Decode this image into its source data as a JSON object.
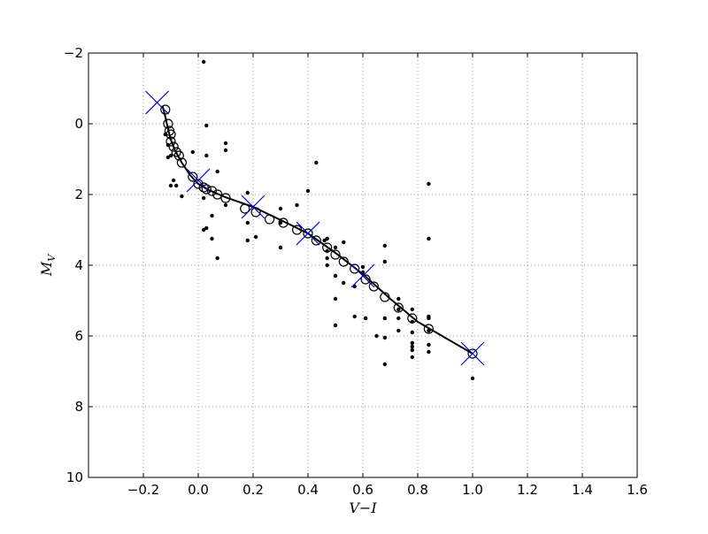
{
  "chart_data": {
    "type": "scatter",
    "title": "",
    "xlabel": "V−I",
    "ylabel": "M",
    "ylabel_subscript": "V",
    "xlim": [
      -0.4,
      1.6
    ],
    "ylim": [
      10,
      -2
    ],
    "y_inverted": true,
    "grid": true,
    "grid_style": "dotted",
    "x_ticks": [
      -0.2,
      0.0,
      0.2,
      0.4,
      0.6,
      0.8,
      1.0,
      1.2,
      1.4,
      1.6
    ],
    "x_tick_labels": [
      "−0.2",
      "0.0",
      "0.2",
      "0.4",
      "0.6",
      "0.8",
      "1.0",
      "1.2",
      "1.4",
      "1.6"
    ],
    "y_ticks": [
      -2,
      0,
      2,
      4,
      6,
      8,
      10
    ],
    "y_tick_labels": [
      "−2",
      "0",
      "2",
      "4",
      "6",
      "8",
      "10"
    ],
    "colors": {
      "points": "#000000",
      "curve": "#000000",
      "knots": "#0000cc",
      "grid": "#808080"
    },
    "series": [
      {
        "kind": "dots",
        "points": [
          [
            0.02,
            -1.75
          ],
          [
            0.1,
            0.55
          ],
          [
            0.03,
            0.05
          ],
          [
            -0.12,
            0.3
          ],
          [
            -0.11,
            0.6
          ],
          [
            -0.1,
            0.9
          ],
          [
            -0.11,
            0.95
          ],
          [
            -0.09,
            1.6
          ],
          [
            -0.1,
            1.75
          ],
          [
            -0.08,
            1.75
          ],
          [
            -0.06,
            2.05
          ],
          [
            -0.02,
            0.8
          ],
          [
            0.03,
            0.9
          ],
          [
            0.1,
            0.75
          ],
          [
            0.07,
            1.35
          ],
          [
            0.02,
            2.1
          ],
          [
            0.05,
            2.6
          ],
          [
            0.03,
            2.95
          ],
          [
            0.02,
            3.0
          ],
          [
            0.05,
            3.25
          ],
          [
            0.07,
            3.8
          ],
          [
            0.1,
            2.3
          ],
          [
            0.18,
            1.95
          ],
          [
            0.18,
            2.8
          ],
          [
            0.18,
            3.3
          ],
          [
            0.21,
            3.2
          ],
          [
            0.3,
            2.4
          ],
          [
            0.3,
            2.8
          ],
          [
            0.3,
            3.5
          ],
          [
            0.36,
            2.3
          ],
          [
            0.4,
            1.9
          ],
          [
            0.43,
            1.1
          ],
          [
            0.46,
            3.3
          ],
          [
            0.47,
            3.25
          ],
          [
            0.47,
            3.6
          ],
          [
            0.47,
            3.8
          ],
          [
            0.47,
            4.0
          ],
          [
            0.5,
            3.5
          ],
          [
            0.5,
            4.3
          ],
          [
            0.5,
            4.95
          ],
          [
            0.5,
            5.7
          ],
          [
            0.53,
            3.35
          ],
          [
            0.53,
            4.5
          ],
          [
            0.57,
            4.6
          ],
          [
            0.57,
            5.45
          ],
          [
            0.6,
            4.05
          ],
          [
            0.6,
            4.2
          ],
          [
            0.61,
            5.5
          ],
          [
            0.65,
            6.0
          ],
          [
            0.68,
            3.45
          ],
          [
            0.68,
            3.9
          ],
          [
            0.68,
            5.5
          ],
          [
            0.68,
            6.05
          ],
          [
            0.68,
            6.8
          ],
          [
            0.73,
            4.95
          ],
          [
            0.73,
            5.25
          ],
          [
            0.73,
            5.5
          ],
          [
            0.73,
            5.85
          ],
          [
            0.78,
            5.25
          ],
          [
            0.78,
            5.6
          ],
          [
            0.78,
            5.9
          ],
          [
            0.78,
            6.2
          ],
          [
            0.78,
            6.3
          ],
          [
            0.78,
            6.4
          ],
          [
            0.78,
            6.6
          ],
          [
            0.84,
            1.7
          ],
          [
            0.84,
            3.25
          ],
          [
            0.84,
            5.45
          ],
          [
            0.84,
            5.5
          ],
          [
            0.84,
            5.85
          ],
          [
            0.84,
            6.25
          ],
          [
            0.84,
            6.45
          ],
          [
            1.0,
            7.2
          ]
        ]
      },
      {
        "kind": "open-circles",
        "points": [
          [
            -0.12,
            -0.4
          ],
          [
            -0.11,
            0.0
          ],
          [
            -0.105,
            0.2
          ],
          [
            -0.1,
            0.3
          ],
          [
            -0.1,
            0.5
          ],
          [
            -0.09,
            0.65
          ],
          [
            -0.08,
            0.8
          ],
          [
            -0.07,
            0.9
          ],
          [
            -0.06,
            1.1
          ],
          [
            -0.02,
            1.5
          ],
          [
            0.0,
            1.7
          ],
          [
            0.02,
            1.8
          ],
          [
            0.03,
            1.85
          ],
          [
            0.05,
            1.9
          ],
          [
            0.07,
            2.0
          ],
          [
            0.1,
            2.1
          ],
          [
            0.17,
            2.4
          ],
          [
            0.21,
            2.5
          ],
          [
            0.26,
            2.7
          ],
          [
            0.31,
            2.8
          ],
          [
            0.36,
            3.0
          ],
          [
            0.4,
            3.1
          ],
          [
            0.43,
            3.3
          ],
          [
            0.47,
            3.5
          ],
          [
            0.5,
            3.7
          ],
          [
            0.53,
            3.9
          ],
          [
            0.57,
            4.1
          ],
          [
            0.61,
            4.4
          ],
          [
            0.64,
            4.6
          ],
          [
            0.68,
            4.9
          ],
          [
            0.73,
            5.2
          ],
          [
            0.78,
            5.5
          ],
          [
            0.84,
            5.8
          ],
          [
            1.0,
            6.5
          ]
        ]
      },
      {
        "kind": "curve",
        "points": [
          [
            -0.13,
            -0.5
          ],
          [
            -0.12,
            -0.2
          ],
          [
            -0.11,
            0.15
          ],
          [
            -0.1,
            0.45
          ],
          [
            -0.085,
            0.75
          ],
          [
            -0.06,
            1.1
          ],
          [
            -0.03,
            1.45
          ],
          [
            0.0,
            1.7
          ],
          [
            0.04,
            1.88
          ],
          [
            0.1,
            2.08
          ],
          [
            0.2,
            2.35
          ],
          [
            0.3,
            2.72
          ],
          [
            0.4,
            3.1
          ],
          [
            0.5,
            3.65
          ],
          [
            0.6,
            4.25
          ],
          [
            0.7,
            4.95
          ],
          [
            0.8,
            5.6
          ],
          [
            0.9,
            6.05
          ],
          [
            1.0,
            6.5
          ]
        ]
      },
      {
        "kind": "knots",
        "points": [
          [
            -0.15,
            -0.6
          ],
          [
            0.0,
            1.6
          ],
          [
            0.2,
            2.35
          ],
          [
            0.4,
            3.1
          ],
          [
            0.6,
            4.3
          ],
          [
            1.0,
            6.5
          ]
        ]
      }
    ]
  }
}
